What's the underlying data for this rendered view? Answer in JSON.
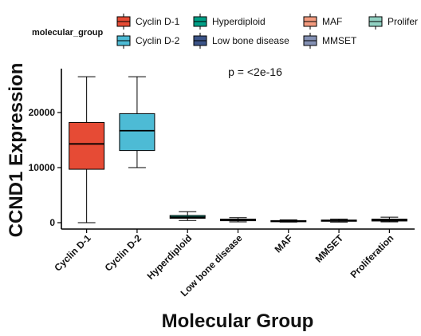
{
  "chart_data": {
    "type": "boxplot",
    "xlabel": "Molecular Group",
    "ylabel": "CCND1 Expression",
    "legend_title": "molecular_group",
    "legend_position": "top",
    "annotation": "p = <2e-16",
    "ylim": [
      -1000,
      28000
    ],
    "yticks": [
      0,
      10000,
      20000
    ],
    "categories": [
      "Cyclin D-1",
      "Cyclin D-2",
      "Hyperdiploid",
      "Low bone disease",
      "MAF",
      "MMSET",
      "Proliferation"
    ],
    "legend_labels": [
      "Cyclin D-1",
      "Cyclin D-2",
      "Hyperdiploid",
      "Low bone disease",
      "MAF",
      "MMSET",
      "Prolifer"
    ],
    "colors": [
      "#E64B35",
      "#4DBBD5",
      "#00A087",
      "#3C5488",
      "#F39B7F",
      "#8491B4",
      "#91D1C2"
    ],
    "boxes": [
      {
        "min": 0,
        "q1": 9700,
        "median": 14300,
        "q3": 18200,
        "max": 26500
      },
      {
        "min": 10000,
        "q1": 13100,
        "median": 16700,
        "q3": 19800,
        "max": 26500
      },
      {
        "min": 400,
        "q1": 800,
        "median": 1000,
        "q3": 1300,
        "max": 2000
      },
      {
        "min": 150,
        "q1": 350,
        "median": 500,
        "q3": 650,
        "max": 900
      },
      {
        "min": 100,
        "q1": 200,
        "median": 280,
        "q3": 380,
        "max": 500
      },
      {
        "min": 100,
        "q1": 250,
        "median": 380,
        "q3": 480,
        "max": 650
      },
      {
        "min": 150,
        "q1": 300,
        "median": 450,
        "q3": 650,
        "max": 1000
      }
    ]
  }
}
